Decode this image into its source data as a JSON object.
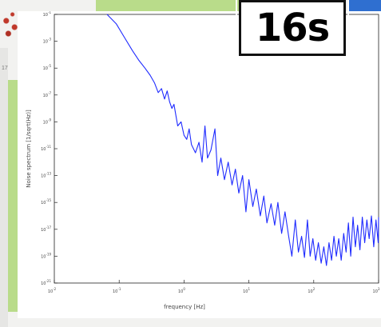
{
  "timer": {
    "label": "16s"
  },
  "background": {
    "left_fragment_text": "17"
  },
  "chart_data": {
    "type": "line",
    "title": "",
    "xlabel": "frequency [Hz]",
    "ylabel": "Noise spectrum [1/sqrt(Hz)]",
    "x_scale": "log",
    "y_scale": "log",
    "xlim": [
      0.01,
      1000
    ],
    "ylim": [
      1e-21,
      0.1
    ],
    "x_ticks": [
      {
        "value": 0.01,
        "base": "10",
        "exp": "-2"
      },
      {
        "value": 0.1,
        "base": "10",
        "exp": "-1"
      },
      {
        "value": 1,
        "base": "10",
        "exp": "0"
      },
      {
        "value": 10,
        "base": "10",
        "exp": "1"
      },
      {
        "value": 100,
        "base": "10",
        "exp": "2"
      },
      {
        "value": 1000,
        "base": "10",
        "exp": "3"
      }
    ],
    "y_ticks": [
      {
        "value": 0.1,
        "base": "10",
        "exp": "-1"
      },
      {
        "value": 0.001,
        "base": "10",
        "exp": "-3"
      },
      {
        "value": 1e-05,
        "base": "10",
        "exp": "-5"
      },
      {
        "value": 1e-07,
        "base": "10",
        "exp": "-7"
      },
      {
        "value": 1e-09,
        "base": "10",
        "exp": "-9"
      },
      {
        "value": 1e-11,
        "base": "10",
        "exp": "-11"
      },
      {
        "value": 1e-13,
        "base": "10",
        "exp": "-13"
      },
      {
        "value": 1e-15,
        "base": "10",
        "exp": "-15"
      },
      {
        "value": 1e-17,
        "base": "10",
        "exp": "-17"
      },
      {
        "value": 1e-19,
        "base": "10",
        "exp": "-19"
      },
      {
        "value": 1e-21,
        "base": "10",
        "exp": "-21"
      }
    ],
    "grid": false,
    "series": [
      {
        "color": "#1f2bff",
        "points": [
          [
            0.065,
            0.1
          ],
          [
            0.09,
            0.02
          ],
          [
            0.12,
            0.002
          ],
          [
            0.16,
            0.0002
          ],
          [
            0.2,
            4e-05
          ],
          [
            0.25,
            1e-05
          ],
          [
            0.3,
            3e-06
          ],
          [
            0.35,
            8e-07
          ],
          [
            0.4,
            1.5e-07
          ],
          [
            0.45,
            3e-07
          ],
          [
            0.5,
            5e-08
          ],
          [
            0.55,
            2e-07
          ],
          [
            0.6,
            3e-08
          ],
          [
            0.65,
            1e-08
          ],
          [
            0.7,
            2e-08
          ],
          [
            0.8,
            5e-10
          ],
          [
            0.9,
            1e-09
          ],
          [
            1.0,
            1e-10
          ],
          [
            1.1,
            5e-11
          ],
          [
            1.2,
            3e-10
          ],
          [
            1.3,
            2e-11
          ],
          [
            1.5,
            5e-12
          ],
          [
            1.7,
            3e-11
          ],
          [
            1.9,
            1e-12
          ],
          [
            2.1,
            5e-10
          ],
          [
            2.3,
            2e-12
          ],
          [
            2.6,
            8e-12
          ],
          [
            3.0,
            3e-10
          ],
          [
            3.3,
            1e-13
          ],
          [
            3.7,
            2e-12
          ],
          [
            4.2,
            5e-14
          ],
          [
            4.8,
            1e-12
          ],
          [
            5.5,
            2e-14
          ],
          [
            6.2,
            3e-13
          ],
          [
            7.0,
            5e-15
          ],
          [
            8.0,
            1e-13
          ],
          [
            9.0,
            2e-16
          ],
          [
            10,
            5e-14
          ],
          [
            11.5,
            5e-16
          ],
          [
            13,
            1e-14
          ],
          [
            15,
            1e-16
          ],
          [
            17,
            3e-15
          ],
          [
            19,
            3e-17
          ],
          [
            22,
            8e-16
          ],
          [
            25,
            2e-17
          ],
          [
            28,
            1e-15
          ],
          [
            32,
            5e-18
          ],
          [
            36,
            2e-16
          ],
          [
            41,
            3e-18
          ],
          [
            46,
            1e-19
          ],
          [
            52,
            5e-17
          ],
          [
            58,
            2e-19
          ],
          [
            65,
            3e-18
          ],
          [
            72,
            8e-20
          ],
          [
            80,
            5e-17
          ],
          [
            88,
            1e-19
          ],
          [
            97,
            2e-18
          ],
          [
            107,
            5e-20
          ],
          [
            118,
            1e-18
          ],
          [
            130,
            3e-20
          ],
          [
            143,
            5e-19
          ],
          [
            157,
            2e-20
          ],
          [
            172,
            1e-18
          ],
          [
            188,
            5e-20
          ],
          [
            205,
            3e-18
          ],
          [
            223,
            1e-19
          ],
          [
            243,
            2e-18
          ],
          [
            265,
            5e-20
          ],
          [
            290,
            5e-18
          ],
          [
            315,
            2e-19
          ],
          [
            342,
            3e-17
          ],
          [
            372,
            1e-19
          ],
          [
            404,
            8e-17
          ],
          [
            438,
            5e-19
          ],
          [
            475,
            2e-17
          ],
          [
            515,
            3e-19
          ],
          [
            560,
            8e-17
          ],
          [
            610,
            1e-18
          ],
          [
            660,
            5e-17
          ],
          [
            715,
            2e-18
          ],
          [
            775,
            1e-16
          ],
          [
            840,
            5e-19
          ],
          [
            910,
            5e-17
          ],
          [
            985,
            1e-18
          ],
          [
            1000,
            8e-17
          ]
        ]
      }
    ]
  }
}
